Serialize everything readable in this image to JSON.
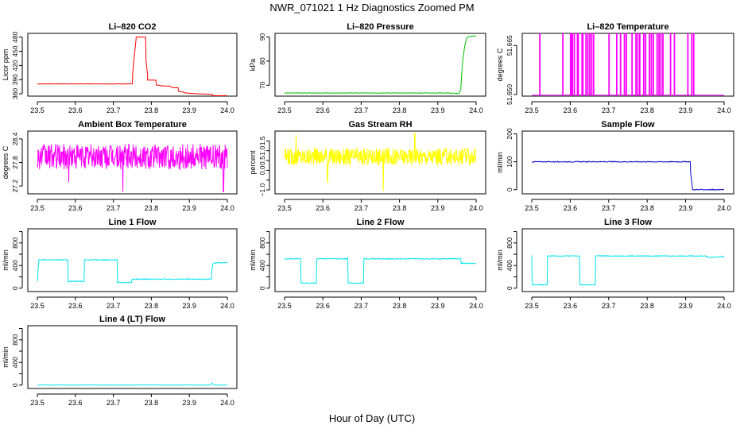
{
  "figure": {
    "title": "NWR_071021  1 Hz Diagnostics Zoomed PM",
    "xlabel": "Hour of Day (UTC)"
  },
  "chart_data": [
    {
      "type": "line",
      "title": "Li–820 CO2",
      "ylabel": "Licor ppm",
      "color": "#ff0000",
      "xlim": [
        23.5,
        24.0
      ],
      "ylim": [
        355,
        488
      ],
      "xticks": [
        23.5,
        23.6,
        23.7,
        23.8,
        23.9,
        24.0
      ],
      "xtick_labels": [
        "23.5",
        "23.6",
        "23.7",
        "23.8",
        "23.9",
        "24.0"
      ],
      "yticks": [
        360,
        390,
        420,
        450,
        480
      ],
      "ytick_labels": [
        "360",
        "390",
        "420",
        "450",
        "480"
      ],
      "x": [
        23.5,
        23.75,
        23.751,
        23.76,
        23.76,
        23.785,
        23.786,
        23.79,
        23.79,
        23.812,
        23.813,
        23.825,
        23.825,
        23.85,
        23.855,
        23.87,
        23.872,
        23.88,
        23.89,
        23.9,
        23.92,
        23.95,
        23.96,
        23.962,
        23.99,
        24.0
      ],
      "y": [
        381,
        381,
        405,
        478,
        480,
        480,
        430,
        400,
        389,
        389,
        379,
        377,
        377,
        376,
        373,
        373,
        365,
        364,
        362,
        361,
        360,
        359,
        359,
        356,
        356,
        356
      ],
      "noise": 0.4
    },
    {
      "type": "line",
      "title": "Li–820 Pressure",
      "ylabel": "kPa",
      "color": "#00c000",
      "xlim": [
        23.5,
        24.0
      ],
      "ylim": [
        65.5,
        91.5
      ],
      "xticks": [
        23.5,
        23.6,
        23.7,
        23.8,
        23.9,
        24.0
      ],
      "xtick_labels": [
        "23.5",
        "23.6",
        "23.7",
        "23.8",
        "23.9",
        "24.0"
      ],
      "yticks": [
        70,
        80,
        90
      ],
      "ytick_labels": [
        "70",
        "80",
        "90"
      ],
      "x": [
        23.5,
        23.93,
        23.95,
        23.955,
        23.96,
        23.962,
        23.965,
        23.97,
        23.975,
        23.98,
        24.0
      ],
      "y": [
        66.8,
        66.8,
        66.6,
        66.5,
        68,
        74,
        80,
        86,
        89.5,
        90.2,
        90.4
      ],
      "noise": 0.1
    },
    {
      "type": "spikes",
      "title": "Li–820 Temperature",
      "ylabel": "degrees C",
      "color": "#ff00ff",
      "xlim": [
        23.5,
        24.0
      ],
      "ylim": [
        51.6495,
        51.6687
      ],
      "baseline": 51.6498,
      "spike_top": 51.6686,
      "xticks": [
        23.5,
        23.6,
        23.7,
        23.8,
        23.9,
        24.0
      ],
      "xtick_labels": [
        "23.5",
        "23.6",
        "23.7",
        "23.8",
        "23.9",
        "24.0"
      ],
      "yticks": [
        51.65,
        51.665
      ],
      "ytick_labels": [
        "51.650",
        "51.665"
      ],
      "spikes_x": [
        23.52,
        23.58,
        23.6,
        23.602,
        23.605,
        23.61,
        23.618,
        23.62,
        23.63,
        23.632,
        23.64,
        23.645,
        23.65,
        23.655,
        23.66,
        23.7,
        23.72,
        23.73,
        23.74,
        23.745,
        23.76,
        23.77,
        23.775,
        23.78,
        23.79,
        23.795,
        23.805,
        23.81,
        23.815,
        23.825,
        23.83,
        23.835,
        23.84,
        23.86,
        23.87,
        23.905,
        23.915,
        23.92
      ]
    },
    {
      "type": "noise",
      "title": "Ambient Box Temperature",
      "ylabel": "degrees C",
      "color": "#ff00ff",
      "xlim": [
        23.5,
        24.0
      ],
      "ylim": [
        27.0,
        28.6
      ],
      "mean": 27.95,
      "amp": 0.32,
      "dips": [
        [
          23.725,
          27.05
        ],
        [
          23.99,
          27.05
        ],
        [
          23.583,
          27.3
        ]
      ],
      "xticks": [
        23.5,
        23.6,
        23.7,
        23.8,
        23.9,
        24.0
      ],
      "xtick_labels": [
        "23.5",
        "23.6",
        "23.7",
        "23.8",
        "23.9",
        "24.0"
      ],
      "yticks": [
        27.2,
        27.8,
        28.4
      ],
      "ytick_labels": [
        "27.2",
        "27.8",
        "28.4"
      ]
    },
    {
      "type": "noise",
      "title": "Gas Stream RH",
      "ylabel": "percent",
      "color": "#ffff00",
      "xlim": [
        23.5,
        24.0
      ],
      "ylim": [
        -1.2,
        2.0
      ],
      "mean": 0.7,
      "amp": 0.45,
      "dips": [
        [
          23.758,
          -1.05
        ],
        [
          23.612,
          -0.6
        ],
        [
          23.53,
          1.8
        ],
        [
          23.84,
          1.9
        ]
      ],
      "xticks": [
        23.5,
        23.6,
        23.7,
        23.8,
        23.9,
        24.0
      ],
      "xtick_labels": [
        "23.5",
        "23.6",
        "23.7",
        "23.8",
        "23.9",
        "24.0"
      ],
      "yticks": [
        -1.0,
        -0.5,
        0.0,
        0.5,
        1.0,
        1.5
      ],
      "ytick_labels": [
        "−1.0",
        "0.0",
        "0.5",
        "1.0",
        "1.5"
      ],
      "ytick_label_values": [
        -1.0,
        0.0,
        0.5,
        1.0,
        1.5
      ]
    },
    {
      "type": "line",
      "title": "Sample Flow",
      "ylabel": "ml/min",
      "color": "#0000cc",
      "xlim": [
        23.5,
        24.0
      ],
      "ylim": [
        -15,
        210
      ],
      "xticks": [
        23.5,
        23.6,
        23.7,
        23.8,
        23.9,
        24.0
      ],
      "xtick_labels": [
        "23.5",
        "23.6",
        "23.7",
        "23.8",
        "23.9",
        "24.0"
      ],
      "yticks": [
        0,
        100,
        200
      ],
      "ytick_labels": [
        "0",
        "100",
        "200"
      ],
      "x": [
        23.5,
        23.912,
        23.913,
        23.918,
        24.0
      ],
      "y": [
        100,
        100,
        60,
        0,
        0
      ],
      "noise": 1.5
    },
    {
      "type": "line",
      "title": "Line 1 Flow",
      "ylabel": "ml/min",
      "color": "#00e5ee",
      "xlim": [
        23.5,
        24.0
      ],
      "ylim": [
        -60,
        1050
      ],
      "xticks": [
        23.5,
        23.6,
        23.7,
        23.8,
        23.9,
        24.0
      ],
      "xtick_labels": [
        "23.5",
        "23.6",
        "23.7",
        "23.8",
        "23.9",
        "24.0"
      ],
      "yticks": [
        0,
        200,
        400,
        600,
        800,
        1000
      ],
      "ytick_labels": [
        "0",
        "400",
        "800"
      ],
      "ytick_label_values": [
        0,
        400,
        800
      ],
      "x": [
        23.5,
        23.502,
        23.504,
        23.58,
        23.581,
        23.623,
        23.624,
        23.71,
        23.711,
        23.748,
        23.749,
        23.958,
        23.959,
        23.962,
        23.965,
        24.0
      ],
      "y": [
        120,
        330,
        500,
        500,
        120,
        120,
        500,
        500,
        100,
        100,
        160,
        160,
        300,
        420,
        450,
        450
      ],
      "noise": 8
    },
    {
      "type": "line",
      "title": "Line 2 Flow",
      "ylabel": "ml/min",
      "color": "#00e5ee",
      "xlim": [
        23.5,
        24.0
      ],
      "ylim": [
        -60,
        1050
      ],
      "xticks": [
        23.5,
        23.6,
        23.7,
        23.8,
        23.9,
        24.0
      ],
      "xtick_labels": [
        "23.5",
        "23.6",
        "23.7",
        "23.8",
        "23.9",
        "24.0"
      ],
      "yticks": [
        0,
        200,
        400,
        600,
        800,
        1000
      ],
      "ytick_labels": [
        "0",
        "400",
        "800"
      ],
      "ytick_label_values": [
        0,
        400,
        800
      ],
      "x": [
        23.5,
        23.542,
        23.543,
        23.583,
        23.584,
        23.665,
        23.666,
        23.706,
        23.707,
        23.96,
        23.961,
        24.0
      ],
      "y": [
        520,
        520,
        90,
        90,
        520,
        520,
        90,
        90,
        520,
        520,
        440,
        440
      ],
      "noise": 8
    },
    {
      "type": "line",
      "title": "Line 3 Flow",
      "ylabel": "ml/min",
      "color": "#00e5ee",
      "xlim": [
        23.5,
        24.0
      ],
      "ylim": [
        -60,
        1050
      ],
      "xticks": [
        23.5,
        23.6,
        23.7,
        23.8,
        23.9,
        24.0
      ],
      "xtick_labels": [
        "23.5",
        "23.6",
        "23.7",
        "23.8",
        "23.9",
        "24.0"
      ],
      "yticks": [
        0,
        200,
        400,
        600,
        800,
        1000
      ],
      "ytick_labels": [
        "0",
        "400",
        "800"
      ],
      "ytick_label_values": [
        0,
        400,
        800
      ],
      "x": [
        23.5,
        23.501,
        23.502,
        23.54,
        23.541,
        23.624,
        23.625,
        23.665,
        23.666,
        23.955,
        23.956,
        24.0
      ],
      "y": [
        580,
        60,
        60,
        60,
        570,
        570,
        60,
        60,
        570,
        570,
        540,
        560
      ],
      "noise": 8
    },
    {
      "type": "line",
      "title": "Line 4 (LT) Flow",
      "ylabel": "ml/min",
      "color": "#00e5ee",
      "xlim": [
        23.5,
        24.0
      ],
      "ylim": [
        -60,
        1050
      ],
      "xticks": [
        23.5,
        23.6,
        23.7,
        23.8,
        23.9,
        24.0
      ],
      "xtick_labels": [
        "23.5",
        "23.6",
        "23.7",
        "23.8",
        "23.9",
        "24.0"
      ],
      "yticks": [
        0,
        200,
        400,
        600,
        800,
        1000
      ],
      "ytick_labels": [
        "0",
        "400",
        "800"
      ],
      "ytick_label_values": [
        0,
        400,
        800
      ],
      "x": [
        23.5,
        23.955,
        23.96,
        23.963,
        23.966,
        24.0
      ],
      "y": [
        2,
        2,
        35,
        10,
        2,
        2
      ],
      "noise": 1
    }
  ]
}
